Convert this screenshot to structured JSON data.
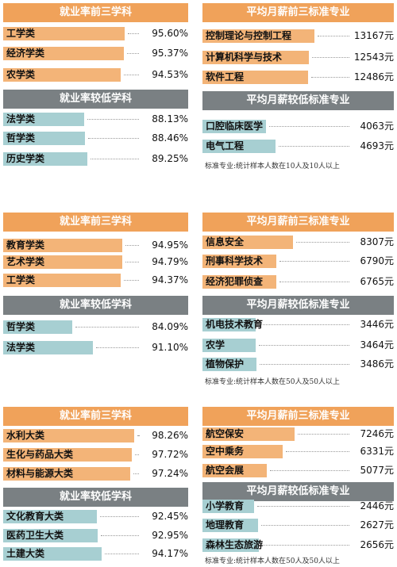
{
  "chart_data": [
    {
      "type": "bar",
      "title": "就业率前三学科",
      "categories": [
        "工学类",
        "经济学类",
        "农学类"
      ],
      "value_labels": [
        "95.60%",
        "95.37%",
        "94.53%"
      ],
      "values": [
        95.6,
        95.37,
        94.53
      ]
    },
    {
      "type": "bar",
      "title": "就业率较低学科",
      "categories": [
        "法学类",
        "哲学类",
        "历史学类"
      ],
      "value_labels": [
        "88.13%",
        "88.46%",
        "89.25%"
      ],
      "values": [
        88.13,
        88.46,
        89.25
      ]
    },
    {
      "type": "bar",
      "title": "平均月薪前三标准专业",
      "categories": [
        "控制理论与控制工程",
        "计算机科学与技术",
        "软件工程"
      ],
      "value_labels": [
        "13167元",
        "12543元",
        "12486元"
      ],
      "values": [
        13167,
        12543,
        12486
      ]
    },
    {
      "type": "bar",
      "title": "平均月薪较低标准专业",
      "categories": [
        "口腔临床医学",
        "电气工程"
      ],
      "value_labels": [
        "4063元",
        "4693元"
      ],
      "values": [
        4063,
        4693
      ]
    },
    {
      "type": "bar",
      "title": "就业率前三学科",
      "categories": [
        "教育学类",
        "艺术学类",
        "工学类"
      ],
      "value_labels": [
        "94.95%",
        "94.79%",
        "94.37%"
      ],
      "values": [
        94.95,
        94.79,
        94.37
      ]
    },
    {
      "type": "bar",
      "title": "就业率较低学科",
      "categories": [
        "哲学类",
        "法学类"
      ],
      "value_labels": [
        "84.09%",
        "91.10%"
      ],
      "values": [
        84.09,
        91.1
      ]
    },
    {
      "type": "bar",
      "title": "平均月薪前三标准专业",
      "categories": [
        "信息安全",
        "刑事科学技术",
        "经济犯罪侦查"
      ],
      "value_labels": [
        "8307元",
        "6790元",
        "6765元"
      ],
      "values": [
        8307,
        6790,
        6765
      ]
    },
    {
      "type": "bar",
      "title": "平均月薪较低标准专业",
      "categories": [
        "机电技术教育",
        "农学",
        "植物保护"
      ],
      "value_labels": [
        "3446元",
        "3464元",
        "3486元"
      ],
      "values": [
        3446,
        3464,
        3486
      ]
    },
    {
      "type": "bar",
      "title": "就业率前三学科",
      "categories": [
        "水利大类",
        "生化与药品大类",
        "材料与能源大类"
      ],
      "value_labels": [
        "98.26%",
        "97.72%",
        "97.24%"
      ],
      "values": [
        98.26,
        97.72,
        97.24
      ]
    },
    {
      "type": "bar",
      "title": "就业率较低学科",
      "categories": [
        "文化教育大类",
        "医药卫生大类",
        "土建大类"
      ],
      "value_labels": [
        "92.45%",
        "92.95%",
        "94.17%"
      ],
      "values": [
        92.45,
        92.95,
        94.17
      ]
    },
    {
      "type": "bar",
      "title": "平均月薪前三标准专业",
      "categories": [
        "航空保安",
        "空中乘务",
        "航空会展"
      ],
      "value_labels": [
        "7246元",
        "6331元",
        "5077元"
      ],
      "values": [
        7246,
        6331,
        5077
      ]
    },
    {
      "type": "bar",
      "title": "平均月薪较低标准专业",
      "categories": [
        "小学教育",
        "地理教育",
        "森林生态旅游"
      ],
      "value_labels": [
        "2446元",
        "2627元",
        "2656元"
      ],
      "values": [
        2446,
        2627,
        2656
      ]
    }
  ],
  "notes": [
    "标准专业:统计样本人数在10人及10人以上",
    "标准专业:统计样本人数在50人及50人以上",
    "标准专业:统计样本人数在50人及50人以上"
  ],
  "colors": {
    "top_header": "#f0a25a",
    "low_header": "#7a8083",
    "top_bar": "#f3b478",
    "low_bar": "#a7cfd2"
  }
}
